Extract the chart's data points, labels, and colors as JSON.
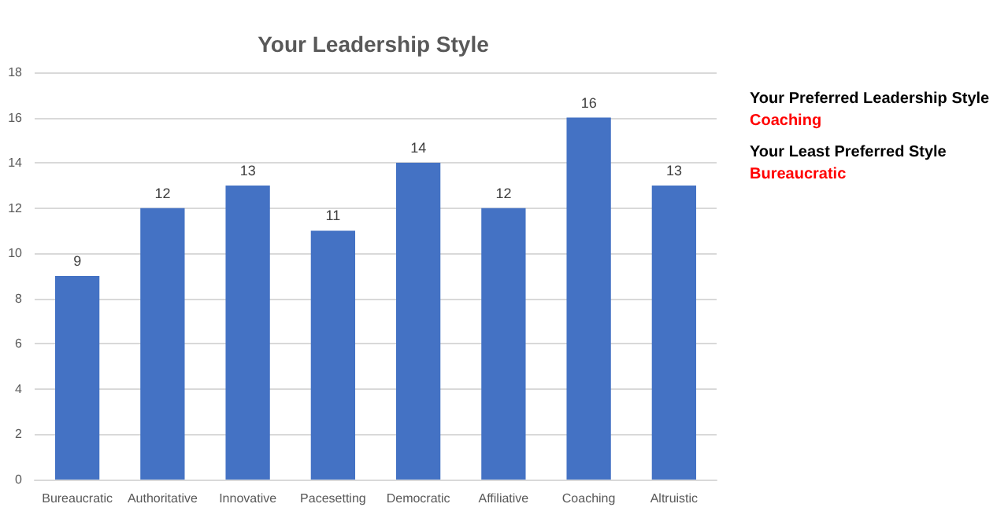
{
  "chart_data": {
    "type": "bar",
    "title": "Your Leadership Style",
    "categories": [
      "Bureaucratic",
      "Authoritative",
      "Innovative",
      "Pacesetting",
      "Democratic",
      "Affiliative",
      "Coaching",
      "Altruistic"
    ],
    "values": [
      9,
      12,
      13,
      11,
      14,
      12,
      16,
      13
    ],
    "color": "#4472c4",
    "ylim": [
      0,
      18
    ],
    "yticks": [
      0,
      2,
      4,
      6,
      8,
      10,
      12,
      14,
      16,
      18
    ],
    "grid": "y",
    "data_labels": true,
    "annotations": [
      "Your Preferred Leadership Style",
      "Coaching",
      "Your Least Preferred Style",
      "Bureaucratic"
    ]
  }
}
